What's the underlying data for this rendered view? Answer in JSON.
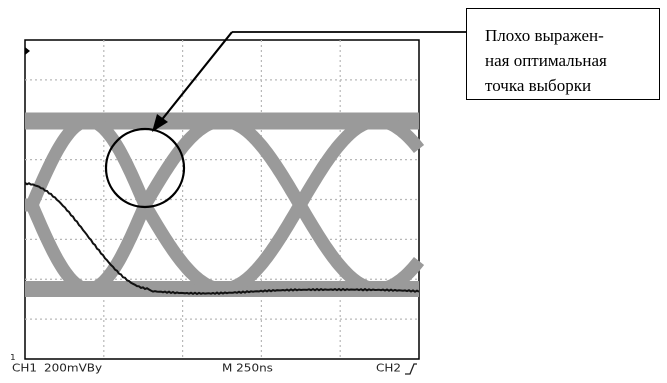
{
  "callout": {
    "lines": [
      "Плохо выражен-",
      "ная оптимальная",
      "точка выборки"
    ]
  },
  "scope": {
    "channel1": "CH1",
    "scale": "200mVBy",
    "timebase": "M 250ns",
    "channel2": "CH2",
    "trigger_icon": "trigger-rising-edge-icon",
    "ground_marker": "1"
  },
  "colors": {
    "trace": "#9a9a9a",
    "overlay_trace": "#111111",
    "grid": "#b8b8b8",
    "border": "#000000"
  }
}
